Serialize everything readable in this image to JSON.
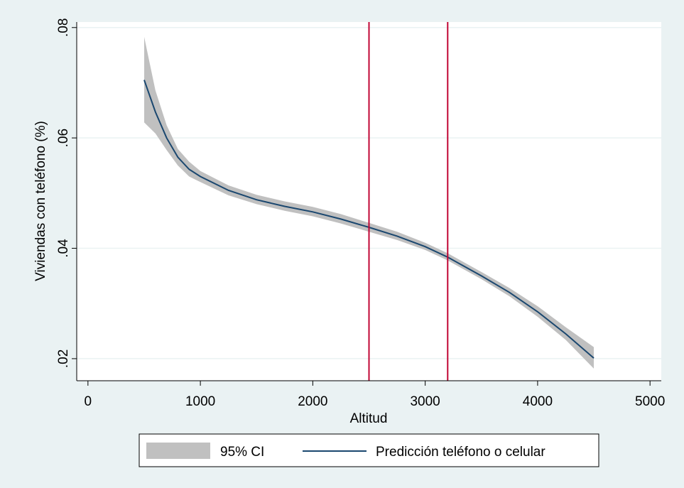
{
  "chart_data": {
    "type": "line",
    "title": "",
    "xlabel": "Altitud",
    "ylabel": "Viviendas con teléfono (%)",
    "xlim": [
      -100,
      5100
    ],
    "ylim": [
      0.016,
      0.081
    ],
    "xticks": [
      0,
      1000,
      2000,
      3000,
      4000,
      5000
    ],
    "xtick_labels": [
      "0",
      "1000",
      "2000",
      "3000",
      "4000",
      "5000"
    ],
    "yticks": [
      0.02,
      0.04,
      0.06,
      0.08
    ],
    "ytick_labels": [
      ".02",
      ".04",
      ".06",
      ".08"
    ],
    "grid": true,
    "legend_position": "bottom",
    "reference_lines_x": [
      2500,
      3200
    ],
    "series": [
      {
        "name": "Predicción teléfono o celular",
        "kind": "line",
        "color": "#1a476f",
        "x": [
          500,
          600,
          700,
          800,
          900,
          1000,
          1250,
          1500,
          1750,
          2000,
          2250,
          2500,
          2750,
          3000,
          3200,
          3500,
          3750,
          4000,
          4250,
          4500
        ],
        "y": [
          0.0705,
          0.0647,
          0.06,
          0.0565,
          0.0543,
          0.053,
          0.0505,
          0.0488,
          0.0476,
          0.0466,
          0.0453,
          0.0438,
          0.0422,
          0.0403,
          0.0384,
          0.035,
          0.032,
          0.0285,
          0.0245,
          0.0201
        ]
      },
      {
        "name": "95% CI",
        "kind": "band",
        "color": "#c0c0c0",
        "x": [
          500,
          600,
          700,
          800,
          900,
          1000,
          1250,
          1500,
          1750,
          2000,
          2250,
          2500,
          2750,
          3000,
          3200,
          3500,
          3750,
          4000,
          4250,
          4500
        ],
        "lower": [
          0.0628,
          0.0608,
          0.0578,
          0.055,
          0.053,
          0.052,
          0.0496,
          0.048,
          0.0468,
          0.0458,
          0.0445,
          0.043,
          0.0415,
          0.0397,
          0.0378,
          0.0344,
          0.0313,
          0.0276,
          0.0234,
          0.0182
        ],
        "upper": [
          0.0783,
          0.0686,
          0.0623,
          0.058,
          0.0557,
          0.054,
          0.0514,
          0.0497,
          0.0485,
          0.0475,
          0.0462,
          0.0446,
          0.043,
          0.041,
          0.0391,
          0.0357,
          0.0328,
          0.0295,
          0.0257,
          0.0221
        ]
      }
    ],
    "colors": {
      "outer_background": "#eaf2f3",
      "plot_background": "#ffffff",
      "grid": "#eaf2f3",
      "reference_line": "#c10534"
    }
  }
}
